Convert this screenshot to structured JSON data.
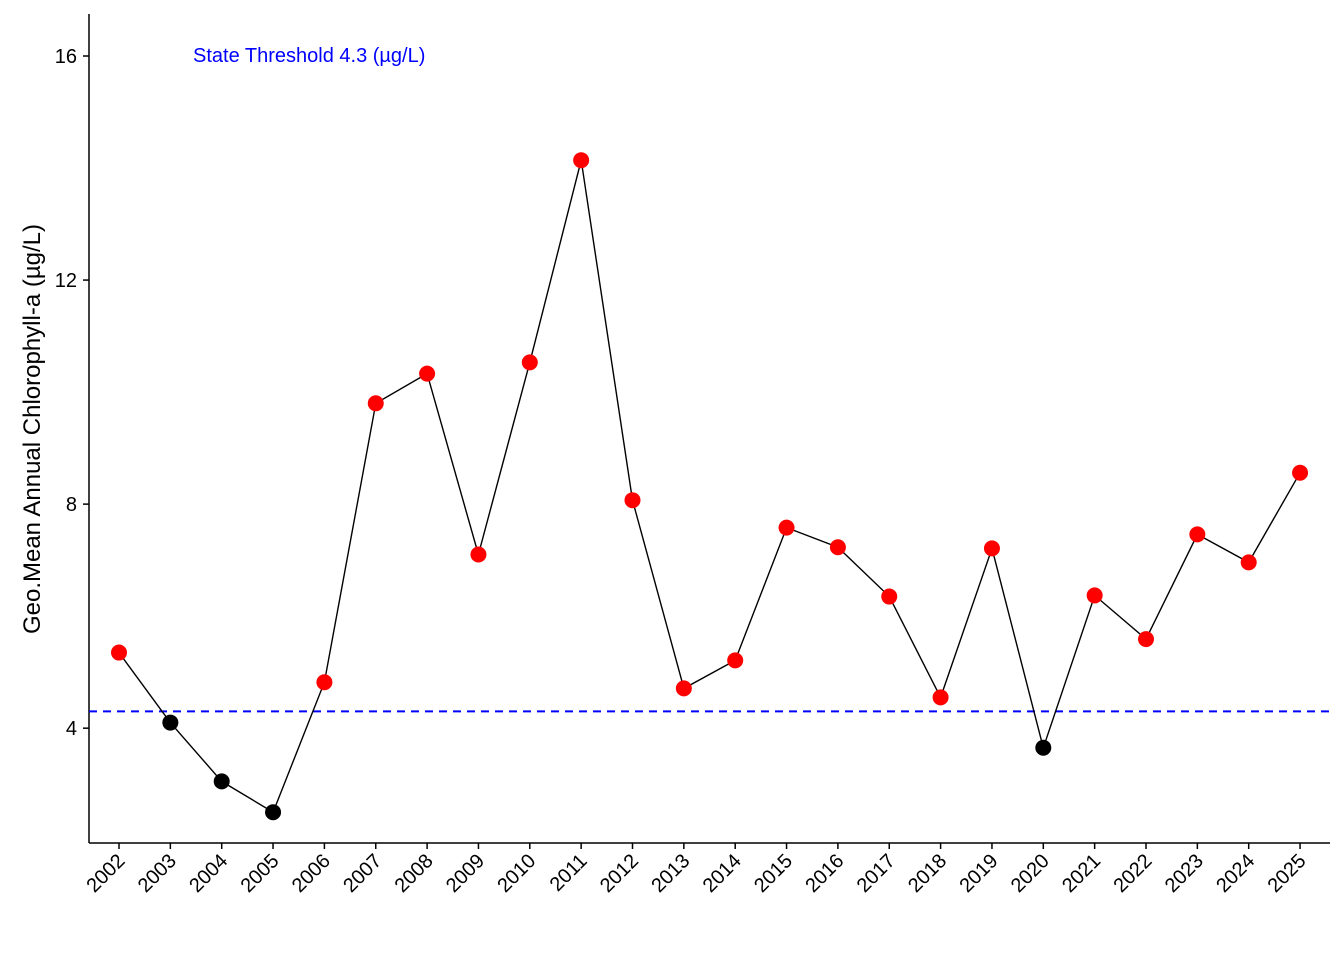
{
  "chart_data": {
    "type": "line",
    "title": "",
    "xlabel": "",
    "ylabel": "Geo.Mean Annual Chlorophyll-a (µg/L)",
    "ylim": [
      1.95,
      16.75
    ],
    "yticks": [
      4,
      8,
      12,
      16
    ],
    "grid": false,
    "categories": [
      "2002",
      "2003",
      "2004",
      "2005",
      "2006",
      "2007",
      "2008",
      "2009",
      "2010",
      "2011",
      "2012",
      "2013",
      "2014",
      "2015",
      "2016",
      "2017",
      "2018",
      "2019",
      "2020",
      "2021",
      "2022",
      "2023",
      "2024",
      "2025"
    ],
    "values": [
      5.35,
      4.1,
      3.05,
      2.5,
      4.82,
      9.8,
      10.33,
      7.1,
      10.53,
      14.14,
      8.07,
      4.71,
      5.21,
      7.58,
      7.23,
      6.35,
      4.55,
      7.21,
      3.65,
      6.37,
      5.59,
      7.46,
      6.96,
      8.56
    ],
    "series": [
      {
        "name": "Geo.Mean Annual Chlorophyll-a",
        "line_color": "#000000",
        "above_threshold_color": "#ff0000",
        "below_threshold_color": "#000000"
      }
    ],
    "threshold": {
      "value": 4.3,
      "label": "State Threshold 4.3 (µg/L)",
      "color": "#0000ff",
      "style": "dashed"
    }
  }
}
